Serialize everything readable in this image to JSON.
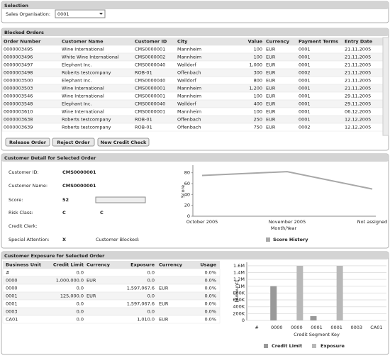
{
  "selection": {
    "title": "Selection",
    "label": "Sales Organisation:",
    "value": "0001"
  },
  "blocked_orders": {
    "title": "Blocked Orders",
    "columns": [
      "Order Number",
      "Customer Name",
      "Customer ID",
      "City",
      "Value",
      "Currency",
      "Payment Terms",
      "Entry Date"
    ],
    "rows": [
      [
        "0000003495",
        "Wine International",
        "CMS0000001",
        "Mannheim",
        "100",
        "EUR",
        "0001",
        "21.11.2005"
      ],
      [
        "0000003496",
        "White Wine International",
        "CMS0000002",
        "Mannheim",
        "100",
        "EUR",
        "0001",
        "21.11.2005"
      ],
      [
        "0000003497",
        "Elephant Inc.",
        "CMS0000040",
        "Walldorf",
        "1,000",
        "EUR",
        "0001",
        "21.11.2005"
      ],
      [
        "0000003498",
        "Roberts testcompany",
        "ROB-01",
        "Offenbach",
        "300",
        "EUR",
        "0002",
        "21.11.2005"
      ],
      [
        "0000003500",
        "Elephant Inc.",
        "CMS0000040",
        "Walldorf",
        "800",
        "EUR",
        "0001",
        "21.11.2005"
      ],
      [
        "0000003503",
        "Wine International",
        "CMS0000001",
        "Mannheim",
        "1,200",
        "EUR",
        "0001",
        "21.11.2005"
      ],
      [
        "0000003546",
        "Wine International",
        "CMS0000001",
        "Mannheim",
        "100",
        "EUR",
        "0001",
        "29.11.2005"
      ],
      [
        "0000003548",
        "Elephant Inc.",
        "CMS0000040",
        "Walldorf",
        "400",
        "EUR",
        "0001",
        "29.11.2005"
      ],
      [
        "0000003610",
        "Wine International",
        "CMS0000001",
        "Mannheim",
        "100",
        "EUR",
        "0001",
        "06.12.2005"
      ],
      [
        "0000003638",
        "Roberts testcompany",
        "ROB-01",
        "Offenbach",
        "250",
        "EUR",
        "0001",
        "12.12.2005"
      ],
      [
        "0000003639",
        "Roberts testcompany",
        "ROB-01",
        "Offenbach",
        "750",
        "EUR",
        "0002",
        "12.12.2005"
      ]
    ],
    "buttons": [
      "Release Order",
      "Reject Order",
      "New Credit Check"
    ]
  },
  "customer_detail": {
    "title": "Customer Detail for Selected Order",
    "fields": [
      {
        "label": "Customer ID:",
        "values": [
          "CMS0000001"
        ]
      },
      {
        "label": "Customer Name:",
        "values": [
          "CMS0000001"
        ]
      },
      {
        "label": "Score:",
        "values": [
          52
        ]
      },
      {
        "label": "Risk Class:",
        "values": [
          "C",
          "C"
        ]
      },
      {
        "label": "Credit Clerk:"
      },
      {
        "label": "Special Attention:",
        "values": [
          "X"
        ]
      },
      {
        "label": "Customer Blocked:"
      }
    ],
    "chart_data": {
      "type": "line",
      "categories": [
        "October 2005",
        "November 2005",
        "Not assigned"
      ],
      "x_label": "Month/Year",
      "y_label": "Score",
      "series": [
        {
          "name": "Score History",
          "color": "#a8a8a8",
          "values": [
            75,
            82,
            50
          ]
        }
      ],
      "ylim": [
        0,
        90
      ],
      "yticks": [
        0,
        20,
        40,
        60,
        80
      ],
      "grid": false
    }
  },
  "exposure": {
    "title": "Customer Exposure for Selected Order",
    "columns": [
      "Business Unit",
      "Credit Limit",
      "Currency",
      "Exposure",
      "Currency",
      "Usage"
    ],
    "rows": [
      [
        "#",
        "0.0",
        null,
        "0.0",
        null,
        "0.0%"
      ],
      [
        "0000",
        "1,000,000.0",
        "EUR",
        "0.0",
        null,
        "0.0%"
      ],
      [
        "0000",
        "0.0",
        null,
        "1,597,067.6",
        "EUR",
        "0.0%"
      ],
      [
        "0001",
        "125,000.0",
        "EUR",
        "0.0",
        null,
        "0.0%"
      ],
      [
        "0001",
        "0.0",
        null,
        "1,597,067.6",
        "EUR",
        "0.0%"
      ],
      [
        "0003",
        "0.0",
        null,
        "0.0",
        null,
        "0.0%"
      ],
      [
        "CA01",
        "0.0",
        null,
        "1,010.0",
        "EUR",
        "0.0%"
      ]
    ],
    "chart_data": {
      "type": "bar",
      "categories": [
        "#",
        "0000",
        "0000",
        "0001",
        "0001",
        "0003",
        "CA01"
      ],
      "x_label": "Credit Segment Key",
      "y_label": "[Amount]",
      "series": [
        {
          "name": "Credit Limit",
          "color": "#999999",
          "values": [
            0,
            1000000,
            0,
            125000,
            0,
            0,
            0
          ]
        },
        {
          "name": "Exposure",
          "color": "#b8b8b8",
          "values": [
            0,
            0,
            1597067.6,
            0,
            1597067.6,
            0,
            1010
          ]
        }
      ],
      "ylim": [
        0,
        1700000
      ],
      "yticks": [
        0,
        {
          "value": 200000,
          "label": "200K"
        },
        {
          "value": 400000,
          "label": "400K"
        },
        {
          "value": 600000,
          "label": "600K"
        },
        {
          "value": 800000,
          "label": "800K"
        },
        {
          "value": 1000000,
          "label": "1M"
        },
        {
          "value": 1200000,
          "label": "1.2M"
        },
        {
          "value": 1400000,
          "label": "1.4M"
        },
        {
          "value": 1600000,
          "label": "1.6M"
        }
      ]
    }
  }
}
